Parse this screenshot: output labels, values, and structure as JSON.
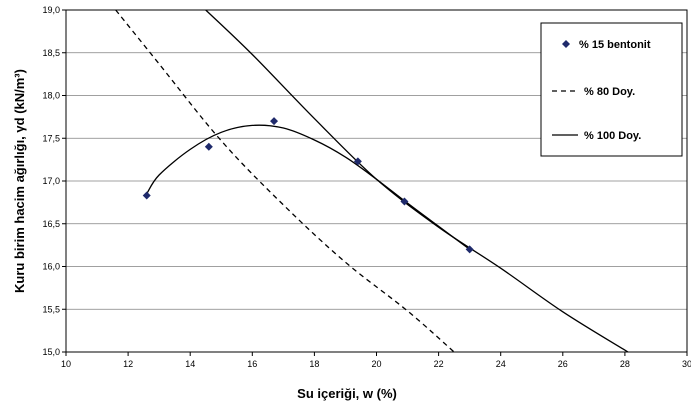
{
  "chart_data": {
    "type": "scatter",
    "xlabel": "Su içeriği, w (%)",
    "ylabel": "Kuru birim hacim ağırlığı, γd  (kN/m³)",
    "xlim": [
      10,
      30
    ],
    "ylim": [
      15.0,
      19.0
    ],
    "x_ticks": [
      "10",
      "12",
      "14",
      "16",
      "18",
      "20",
      "22",
      "24",
      "26",
      "28",
      "30"
    ],
    "y_ticks": [
      "15,0",
      "15,5",
      "16,0",
      "16,5",
      "17,0",
      "17,5",
      "18,0",
      "18,5",
      "19,0"
    ],
    "grid": true,
    "legend_position": "top-right",
    "series": [
      {
        "name": "% 15 bentonit",
        "kind": "points",
        "color": "#1f2a6b",
        "x": [
          12.6,
          14.6,
          16.7,
          19.4,
          20.9,
          23.0
        ],
        "y": [
          16.83,
          17.4,
          17.7,
          17.23,
          16.76,
          16.2
        ]
      },
      {
        "name": "% 80 Doy.",
        "kind": "dashed-line",
        "color": "#000000",
        "x": [
          11.6,
          13.0,
          15.0,
          17.0,
          19.0,
          21.0,
          22.5
        ],
        "y": [
          19.0,
          18.37,
          17.47,
          16.72,
          16.05,
          15.48,
          15.0
        ]
      },
      {
        "name": "% 100 Doy.",
        "kind": "solid-line",
        "color": "#000000",
        "x": [
          14.5,
          16.0,
          18.0,
          20.0,
          22.0,
          24.0,
          26.0,
          28.1
        ],
        "y": [
          19.0,
          18.48,
          17.73,
          17.02,
          16.46,
          15.98,
          15.47,
          15.0
        ]
      },
      {
        "name": "",
        "kind": "fit-curve",
        "color": "#000000",
        "x": [
          12.6,
          13.0,
          14.0,
          15.0,
          16.0,
          17.0,
          18.0,
          19.0,
          20.0,
          21.0,
          22.0,
          23.0
        ],
        "y": [
          16.85,
          17.07,
          17.37,
          17.57,
          17.65,
          17.62,
          17.48,
          17.28,
          17.02,
          16.74,
          16.47,
          16.2
        ]
      }
    ]
  }
}
